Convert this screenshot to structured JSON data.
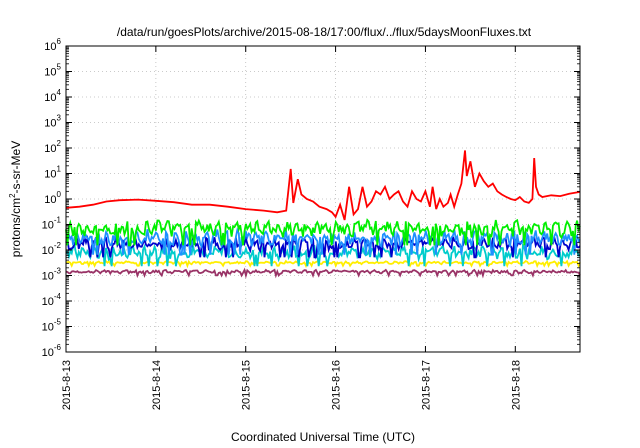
{
  "chart_data": {
    "type": "line",
    "title": "/data/run/goesPlots/archive/2015-08-18/17:00/flux/../flux/5daysMoonFluxes.txt",
    "xlabel": "Coordinated Universal Time (UTC)",
    "ylabel": "protons/cm²-s-sr-MeV",
    "ylabel_parts": {
      "base": "protons/cm",
      "sup": "2",
      "rest": "-s-sr-MeV"
    },
    "yscale": "log",
    "ylim": [
      1e-06,
      1000000.0
    ],
    "y_ticks": [
      {
        "exp": "-6"
      },
      {
        "exp": "-5"
      },
      {
        "exp": "-4"
      },
      {
        "exp": "-3"
      },
      {
        "exp": "-2"
      },
      {
        "exp": "-1"
      },
      {
        "exp": "0"
      },
      {
        "exp": "1"
      },
      {
        "exp": "2"
      },
      {
        "exp": "3"
      },
      {
        "exp": "4"
      },
      {
        "exp": "5"
      },
      {
        "exp": "6"
      }
    ],
    "y_tick_base": "10",
    "x_range_days": [
      0,
      5.72
    ],
    "x_ticks": [
      "2015-8-13",
      "2015-8-14",
      "2015-8-15",
      "2015-8-16",
      "2015-8-17",
      "2015-8-18"
    ],
    "grid": true,
    "series": [
      {
        "color": "#ff0000",
        "points": [
          [
            0.0,
            0.45
          ],
          [
            0.15,
            0.5
          ],
          [
            0.3,
            0.6
          ],
          [
            0.45,
            0.8
          ],
          [
            0.6,
            0.9
          ],
          [
            0.8,
            0.95
          ],
          [
            1.0,
            0.85
          ],
          [
            1.2,
            0.75
          ],
          [
            1.4,
            0.6
          ],
          [
            1.6,
            0.6
          ],
          [
            1.8,
            0.5
          ],
          [
            2.0,
            0.4
          ],
          [
            2.2,
            0.35
          ],
          [
            2.35,
            0.3
          ],
          [
            2.45,
            0.35
          ],
          [
            2.5,
            15.0
          ],
          [
            2.53,
            0.7
          ],
          [
            2.58,
            6.0
          ],
          [
            2.62,
            1.5
          ],
          [
            2.68,
            1.0
          ],
          [
            2.75,
            0.8
          ],
          [
            2.82,
            0.5
          ],
          [
            2.9,
            0.4
          ],
          [
            2.96,
            0.3
          ],
          [
            3.0,
            0.2
          ],
          [
            3.05,
            0.6
          ],
          [
            3.1,
            0.15
          ],
          [
            3.15,
            3.0
          ],
          [
            3.2,
            0.25
          ],
          [
            3.25,
            0.4
          ],
          [
            3.3,
            3.0
          ],
          [
            3.35,
            0.5
          ],
          [
            3.4,
            0.8
          ],
          [
            3.45,
            2.0
          ],
          [
            3.5,
            1.5
          ],
          [
            3.55,
            3.0
          ],
          [
            3.6,
            1.0
          ],
          [
            3.65,
            1.5
          ],
          [
            3.7,
            2.0
          ],
          [
            3.75,
            0.8
          ],
          [
            3.8,
            0.5
          ],
          [
            3.85,
            2.0
          ],
          [
            3.9,
            1.0
          ],
          [
            3.95,
            0.8
          ],
          [
            4.0,
            2.0
          ],
          [
            4.05,
            0.5
          ],
          [
            4.08,
            3.0
          ],
          [
            4.12,
            0.4
          ],
          [
            4.16,
            1.0
          ],
          [
            4.2,
            0.5
          ],
          [
            4.25,
            0.7
          ],
          [
            4.28,
            1.5
          ],
          [
            4.32,
            0.5
          ],
          [
            4.36,
            1.5
          ],
          [
            4.4,
            4.0
          ],
          [
            4.44,
            80.0
          ],
          [
            4.46,
            8.0
          ],
          [
            4.5,
            30.0
          ],
          [
            4.55,
            3.0
          ],
          [
            4.6,
            10.0
          ],
          [
            4.65,
            5.0
          ],
          [
            4.7,
            3.0
          ],
          [
            4.75,
            4.0
          ],
          [
            4.8,
            2.0
          ],
          [
            4.85,
            1.5
          ],
          [
            4.9,
            1.2
          ],
          [
            4.95,
            1.0
          ],
          [
            5.0,
            0.9
          ],
          [
            5.05,
            1.2
          ],
          [
            5.1,
            0.8
          ],
          [
            5.15,
            0.7
          ],
          [
            5.19,
            1.0
          ],
          [
            5.21,
            40.0
          ],
          [
            5.23,
            3.0
          ],
          [
            5.26,
            1.5
          ],
          [
            5.3,
            1.2
          ],
          [
            5.4,
            1.4
          ],
          [
            5.5,
            1.3
          ],
          [
            5.6,
            1.6
          ],
          [
            5.72,
            1.9
          ]
        ]
      },
      {
        "color": "#00ee00",
        "base": 0.07,
        "amp": 0.55,
        "phase": 0.3
      },
      {
        "color": "#1e90ff",
        "base": 0.03,
        "amp": 0.55,
        "phase": 1.1
      },
      {
        "color": "#0000cc",
        "base": 0.018,
        "amp": 0.45,
        "phase": 2.0
      },
      {
        "color": "#00cccc",
        "base": 0.008,
        "amp": 0.45,
        "phase": 2.7
      },
      {
        "color": "#ffee00",
        "base": 0.0032,
        "amp": 0.1,
        "phase": 0.8
      },
      {
        "color": "#993366",
        "base": 0.0014,
        "amp": 0.12,
        "phase": 1.6
      }
    ]
  }
}
